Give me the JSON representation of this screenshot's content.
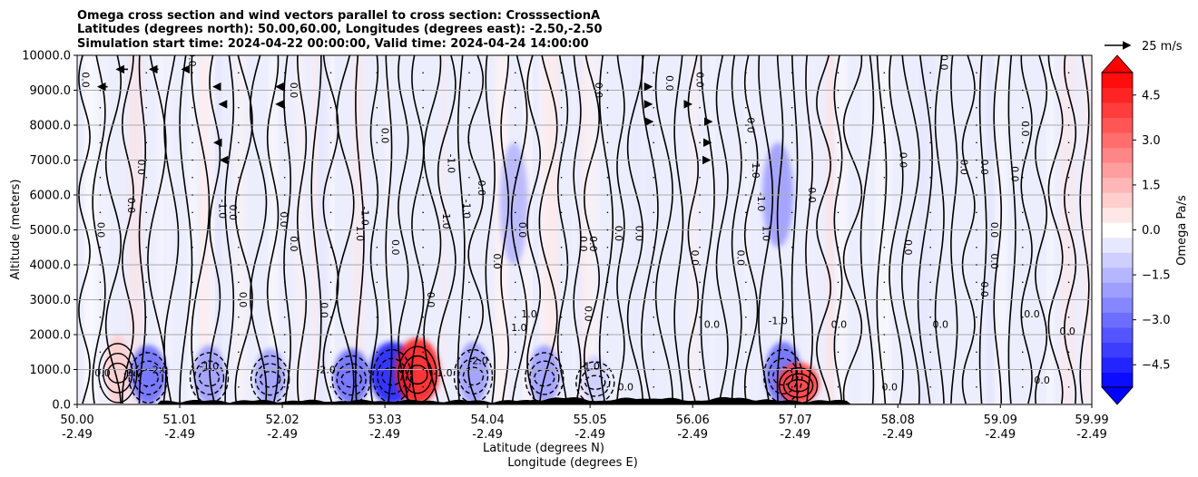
{
  "chart_data": {
    "type": "contour-cross-section",
    "title_lines": [
      "Omega cross section and wind vectors parallel to cross section: CrosssectionA",
      "Latitudes (degrees north): 50.00,60.00, Longitudes (degrees east): -2.50,-2.50",
      "Simulation start time: 2024-04-22 00:00:00, Valid time: 2024-04-24 14:00:00"
    ],
    "ylabel": "Altitude (meters)",
    "xlabel_lat": "Latitude (degrees N)",
    "xlabel_lon": "Longitude (degrees E)",
    "ylim": [
      0,
      10000
    ],
    "yticks": [
      "0.0",
      "1000.0",
      "2000.0",
      "3000.0",
      "4000.0",
      "5000.0",
      "6000.0",
      "7000.0",
      "8000.0",
      "9000.0",
      "10000.0"
    ],
    "xlim": [
      50.0,
      59.99
    ],
    "xticks": [
      {
        "lat": "50.00",
        "lon": "-2.49"
      },
      {
        "lat": "51.01",
        "lon": "-2.49"
      },
      {
        "lat": "52.02",
        "lon": "-2.49"
      },
      {
        "lat": "53.03",
        "lon": "-2.49"
      },
      {
        "lat": "54.04",
        "lon": "-2.49"
      },
      {
        "lat": "55.05",
        "lon": "-2.49"
      },
      {
        "lat": "56.06",
        "lon": "-2.49"
      },
      {
        "lat": "57.07",
        "lon": "-2.49"
      },
      {
        "lat": "58.08",
        "lon": "-2.49"
      },
      {
        "lat": "59.09",
        "lon": "-2.49"
      },
      {
        "lat": "59.99",
        "lon": "-2.49"
      }
    ],
    "colorbar": {
      "label": "Omega Pa/s",
      "range": [
        -5.25,
        5.25
      ],
      "ticks": [
        "4.5",
        "3.0",
        "1.5",
        "0.0",
        "−1.5",
        "−3.0",
        "−4.5"
      ],
      "cmap": "bwr"
    },
    "quiver_key": {
      "label": "25 m/s"
    },
    "omega_features": [
      {
        "lat": 50.4,
        "alt_range": [
          0,
          2000
        ],
        "omega": 1.0
      },
      {
        "lat": 50.7,
        "alt_range": [
          0,
          1700
        ],
        "omega": -3.0
      },
      {
        "lat": 51.3,
        "alt_range": [
          0,
          1700
        ],
        "omega": -2.0
      },
      {
        "lat": 51.9,
        "alt_range": [
          0,
          1600
        ],
        "omega": -2.0
      },
      {
        "lat": 52.7,
        "alt_range": [
          0,
          1600
        ],
        "omega": -3.0
      },
      {
        "lat": 53.1,
        "alt_range": [
          0,
          1800
        ],
        "omega": -4.5
      },
      {
        "lat": 53.35,
        "alt_range": [
          0,
          1900
        ],
        "omega": 4.5
      },
      {
        "lat": 53.9,
        "alt_range": [
          0,
          1800
        ],
        "omega": -2.0
      },
      {
        "lat": 54.6,
        "alt_range": [
          0,
          1700
        ],
        "omega": -2.0
      },
      {
        "lat": 55.1,
        "alt_range": [
          0,
          1400
        ],
        "omega": -1.0
      },
      {
        "lat": 56.95,
        "alt_range": [
          0,
          1800
        ],
        "omega": -3.0
      },
      {
        "lat": 57.1,
        "alt_range": [
          0,
          1200
        ],
        "omega": 4.0
      },
      {
        "lat": 54.3,
        "alt_range": [
          4000,
          7500
        ],
        "omega": -1.5
      },
      {
        "lat": 56.9,
        "alt_range": [
          4500,
          7500
        ],
        "omega": -2.0
      }
    ],
    "contour_labels": [
      {
        "text": "0.0",
        "lat": 51.1,
        "alt": 9900
      },
      {
        "text": "0.0",
        "lat": 50.05,
        "alt": 9300
      },
      {
        "text": "0.0",
        "lat": 52.1,
        "alt": 9000
      },
      {
        "text": "0.0",
        "lat": 53.0,
        "alt": 7700
      },
      {
        "text": "0.0",
        "lat": 50.6,
        "alt": 6800
      },
      {
        "text": "0.0",
        "lat": 50.5,
        "alt": 5700
      },
      {
        "text": "0.0",
        "lat": 50.2,
        "alt": 5000
      },
      {
        "text": "0.0",
        "lat": 51.5,
        "alt": 5500
      },
      {
        "text": "-1.0",
        "lat": 51.4,
        "alt": 5600
      },
      {
        "text": "0.0",
        "lat": 52.0,
        "alt": 5300
      },
      {
        "text": "0.0",
        "lat": 52.1,
        "alt": 4600
      },
      {
        "text": "-1.0",
        "lat": 52.8,
        "alt": 5400
      },
      {
        "text": "1.0",
        "lat": 52.75,
        "alt": 4900
      },
      {
        "text": "0.0",
        "lat": 53.1,
        "alt": 4500
      },
      {
        "text": "-1.0",
        "lat": 53.65,
        "alt": 6900
      },
      {
        "text": "-1.0",
        "lat": 53.8,
        "alt": 5600
      },
      {
        "text": "0.0",
        "lat": 53.95,
        "alt": 6200
      },
      {
        "text": "-1.0",
        "lat": 53.6,
        "alt": 5300
      },
      {
        "text": "0.0",
        "lat": 54.35,
        "alt": 5000
      },
      {
        "text": "0.0",
        "lat": 54.1,
        "alt": 4100
      },
      {
        "text": "0.0",
        "lat": 54.95,
        "alt": 4600
      },
      {
        "text": "0.0",
        "lat": 55.05,
        "alt": 4600
      },
      {
        "text": "0.0",
        "lat": 55.3,
        "alt": 4900
      },
      {
        "text": "0.0",
        "lat": 55.5,
        "alt": 4900
      },
      {
        "text": "0.0",
        "lat": 56.05,
        "alt": 4200
      },
      {
        "text": "0.0",
        "lat": 56.5,
        "alt": 4200
      },
      {
        "text": "1.0",
        "lat": 56.65,
        "alt": 6700
      },
      {
        "text": "-1.0",
        "lat": 56.7,
        "alt": 5800
      },
      {
        "text": "1.0",
        "lat": 56.75,
        "alt": 4900
      },
      {
        "text": "0.0",
        "lat": 57.2,
        "alt": 6000
      },
      {
        "text": "0.0",
        "lat": 58.1,
        "alt": 7000
      },
      {
        "text": "0.0",
        "lat": 58.7,
        "alt": 6800
      },
      {
        "text": "0.0",
        "lat": 58.9,
        "alt": 6800
      },
      {
        "text": "0.0",
        "lat": 59.2,
        "alt": 6600
      },
      {
        "text": "0.0",
        "lat": 59.0,
        "alt": 5000
      },
      {
        "text": "0.0",
        "lat": 58.15,
        "alt": 4500
      },
      {
        "text": "0.0",
        "lat": 59.0,
        "alt": 4100
      },
      {
        "text": "0.0",
        "lat": 55.8,
        "alt": 9200
      },
      {
        "text": "0.0",
        "lat": 56.1,
        "alt": 9300
      },
      {
        "text": "0.0",
        "lat": 55.1,
        "alt": 9000
      },
      {
        "text": "0.0",
        "lat": 56.6,
        "alt": 8000
      },
      {
        "text": "0.0",
        "lat": 58.5,
        "alt": 9800
      },
      {
        "text": "0.0",
        "lat": 59.3,
        "alt": 7900
      },
      {
        "text": "1.0",
        "lat": 54.45,
        "alt": 2500
      },
      {
        "text": "1.0",
        "lat": 54.35,
        "alt": 2100
      },
      {
        "text": "-2.0",
        "lat": 53.95,
        "alt": 1150
      },
      {
        "text": "-3.0",
        "lat": 50.55,
        "alt": 800
      },
      {
        "text": "-2.0",
        "lat": 50.8,
        "alt": 900
      },
      {
        "text": "-1.0",
        "lat": 51.3,
        "alt": 1000
      },
      {
        "text": "-2.0",
        "lat": 52.45,
        "alt": 900
      },
      {
        "text": "-1.0",
        "lat": 53.6,
        "alt": 800
      },
      {
        "text": "-1.0",
        "lat": 55.05,
        "alt": 1000
      },
      {
        "text": "-1.0",
        "lat": 56.9,
        "alt": 2300
      },
      {
        "text": "0.0",
        "lat": 50.25,
        "alt": 800
      },
      {
        "text": "0.0",
        "lat": 51.6,
        "alt": 3000
      },
      {
        "text": "0.0",
        "lat": 52.4,
        "alt": 2700
      },
      {
        "text": "0.0",
        "lat": 53.45,
        "alt": 3000
      },
      {
        "text": "0.0",
        "lat": 55.0,
        "alt": 2600
      },
      {
        "text": "0.0",
        "lat": 56.25,
        "alt": 2200
      },
      {
        "text": "0.0",
        "lat": 57.5,
        "alt": 2200
      },
      {
        "text": "0.0",
        "lat": 58.9,
        "alt": 3300
      },
      {
        "text": "0.0",
        "lat": 59.4,
        "alt": 2500
      },
      {
        "text": "0.0",
        "lat": 59.75,
        "alt": 2000
      },
      {
        "text": "0.0",
        "lat": 58.5,
        "alt": 2200
      },
      {
        "text": "0.0",
        "lat": 59.5,
        "alt": 600
      },
      {
        "text": "0.0",
        "lat": 58.0,
        "alt": 400
      },
      {
        "text": "0.0",
        "lat": 55.4,
        "alt": 400
      }
    ],
    "wind_vectors": [
      {
        "lat": 50.3,
        "alt": 9100,
        "u": -1.0
      },
      {
        "lat": 50.5,
        "alt": 9600,
        "u": -1.2
      },
      {
        "lat": 50.8,
        "alt": 9600,
        "u": -0.9
      },
      {
        "lat": 51.1,
        "alt": 9600,
        "u": -0.7
      },
      {
        "lat": 51.4,
        "alt": 9100,
        "u": -0.6
      },
      {
        "lat": 51.45,
        "alt": 8600,
        "u": -0.5
      },
      {
        "lat": 51.4,
        "alt": 7500,
        "u": -0.5
      },
      {
        "lat": 51.45,
        "alt": 7000,
        "u": -0.4
      },
      {
        "lat": 52.0,
        "alt": 8600,
        "u": -0.4
      },
      {
        "lat": 52.0,
        "alt": 9100,
        "u": -0.4
      },
      {
        "lat": 55.6,
        "alt": 9100,
        "u": 0.6
      },
      {
        "lat": 55.6,
        "alt": 8600,
        "u": 0.6
      },
      {
        "lat": 55.6,
        "alt": 8100,
        "u": 0.7
      },
      {
        "lat": 56.0,
        "alt": 8600,
        "u": 0.5
      },
      {
        "lat": 56.2,
        "alt": 8100,
        "u": 0.5
      },
      {
        "lat": 56.2,
        "alt": 7500,
        "u": 0.4
      },
      {
        "lat": 56.2,
        "alt": 7000,
        "u": 0.3
      }
    ]
  }
}
